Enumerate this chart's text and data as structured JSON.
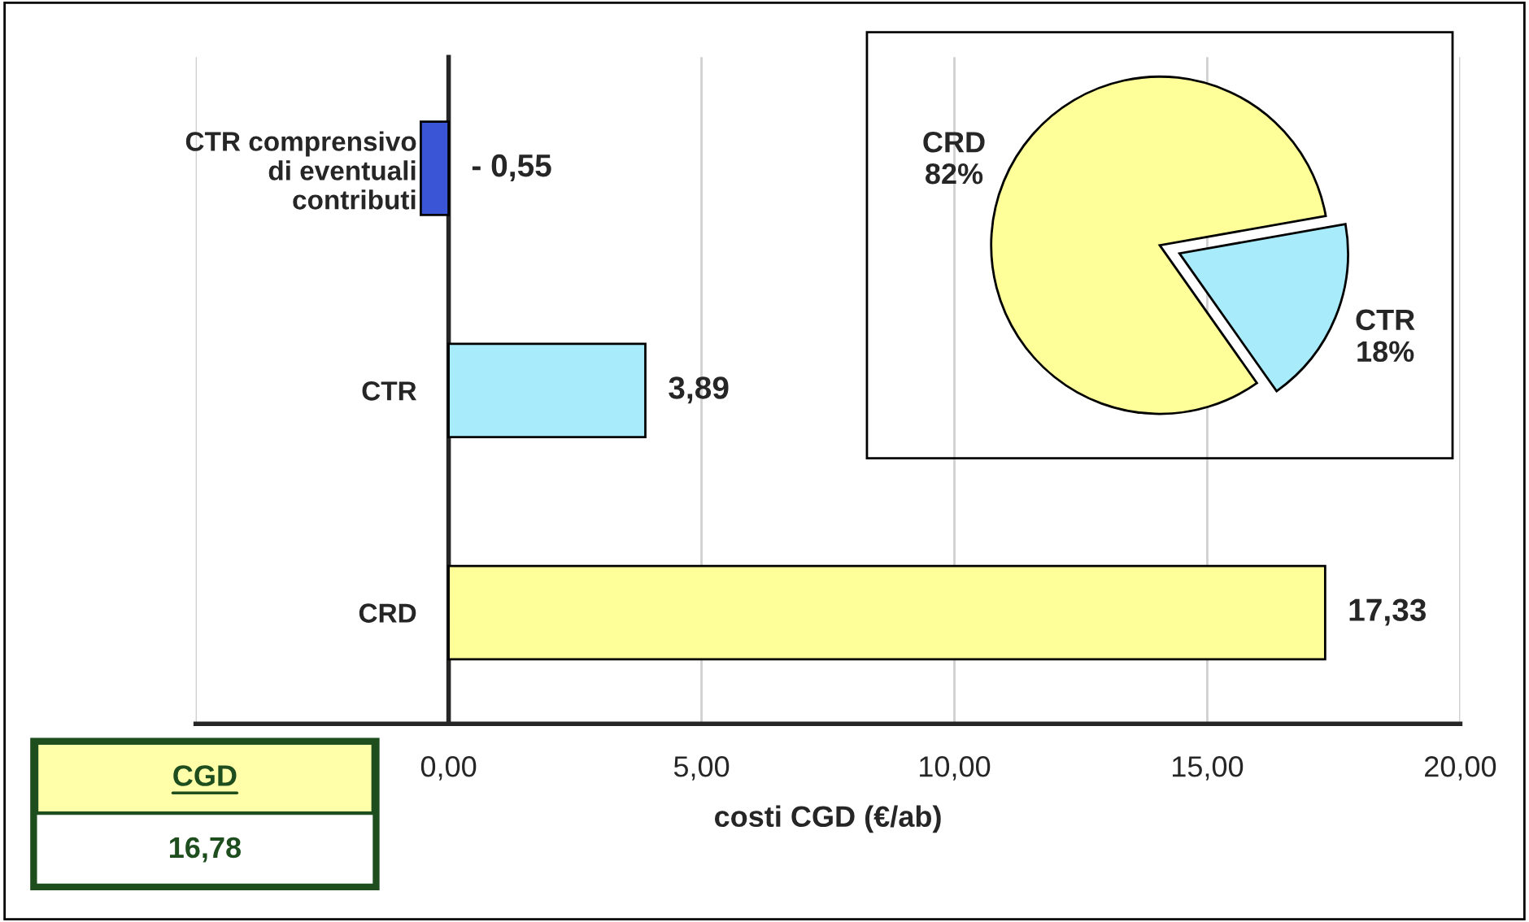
{
  "chart_data": [
    {
      "type": "bar",
      "orientation": "horizontal",
      "xlabel": "costi CGD (€/ab)",
      "categories": [
        "CTR comprensivo\ndi eventuali\ncontributi",
        "CTR",
        "CRD"
      ],
      "values": [
        -0.55,
        3.89,
        17.33
      ],
      "colors": [
        "#3a56d6",
        "#a8ecfc",
        "#ffff99"
      ],
      "value_labels": [
        "- 0,55",
        "3,89",
        "17,33"
      ],
      "xlim": [
        -5,
        20
      ],
      "xticks": [
        {
          "value": -5,
          "label": null
        },
        {
          "value": 0,
          "label": "0,00"
        },
        {
          "value": 5,
          "label": "5,00"
        },
        {
          "value": 10,
          "label": "10,00"
        },
        {
          "value": 15,
          "label": "15,00"
        },
        {
          "value": 20,
          "label": "20,00"
        }
      ],
      "grid": "x",
      "annotations": [
        "CGD",
        "16,78"
      ]
    },
    {
      "type": "pie",
      "categories": [
        "CRD",
        "CTR"
      ],
      "values": [
        82,
        18
      ],
      "colors": [
        "#ffff99",
        "#a8ecfc"
      ],
      "value_labels": [
        "82%",
        "18%"
      ]
    }
  ]
}
